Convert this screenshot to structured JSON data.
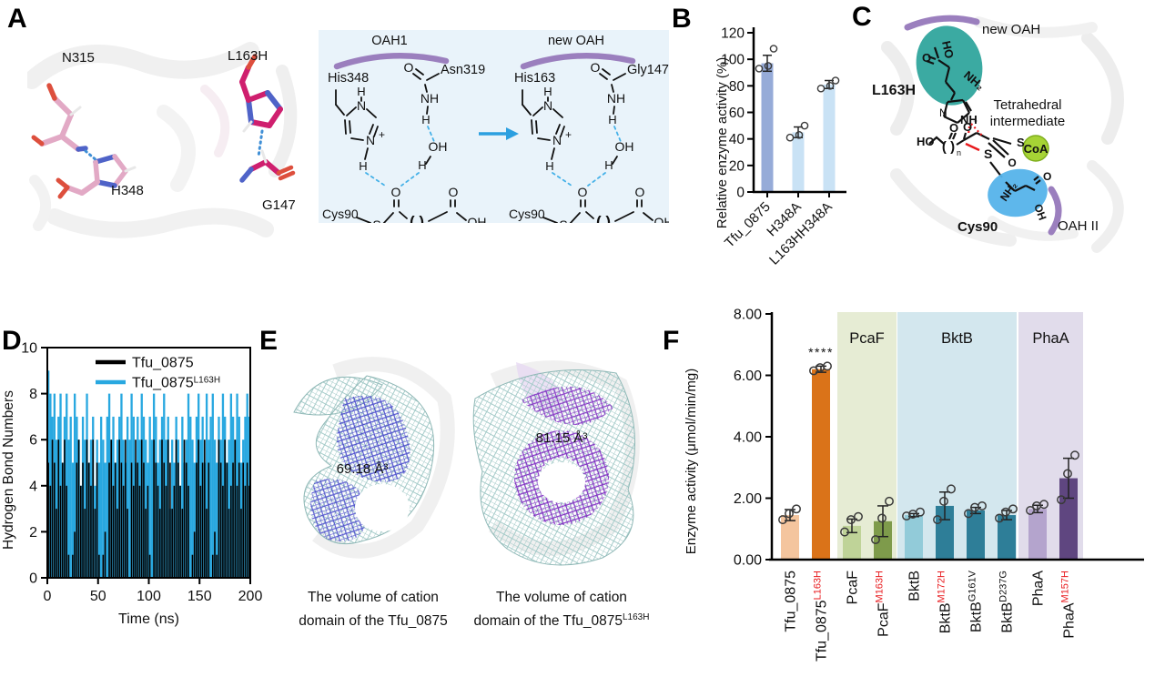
{
  "panel_labels": {
    "A": "A",
    "B": "B",
    "C": "C",
    "D": "D",
    "E": "E",
    "F": "F"
  },
  "panelA": {
    "mol_labels": {
      "n315": "N315",
      "h348": "H348",
      "l163h": "L163H",
      "g147": "G147"
    },
    "scheme": {
      "atoms": {
        "h": "H",
        "n": "N",
        "plus": "+",
        "nh": "NH",
        "o": "O",
        "oh": "OH",
        "s": "S",
        "cys": "Cys90",
        "bracket": "( )",
        "n_sub": "n"
      },
      "left": {
        "title": "OAH1",
        "res_left": "His348",
        "res_right": "Asn319",
        "highlight": false
      },
      "right": {
        "title": "new OAH",
        "res_left": "His163",
        "res_right": "Gly147",
        "highlight": true
      },
      "red": "#e8191c",
      "arc": "#9b7fbe",
      "hbond": "#45b1e8",
      "arrow": "#2b9fe0"
    }
  },
  "panelC": {
    "new_oah": "new OAH",
    "l163h": "L163H",
    "tetra1": "Tetrahedral",
    "tetra2": "intermediate",
    "coa": "CoA",
    "cys90": "Cys90",
    "oah2": "OAH II",
    "nh": "NH",
    "s_red": "S",
    "s": "S",
    "ho1": "HO",
    "ho2": "HO",
    "o1": "O",
    "o2": "O",
    "o3": "O",
    "o4": "O",
    "o5": "O",
    "minus": "⁻",
    "oh": "OH",
    "nh2_teal": "NH₂",
    "nh2_blue": "NH₂",
    "n_black": "N",
    "bracket": "( )",
    "n_sub": "n",
    "teal_color": "#178f8b",
    "blue_color": "#1d8fd1"
  },
  "panelE": {
    "left": {
      "volume": "69.18 Å³",
      "cap1": "The volume of cation",
      "cap2": "domain of the Tfu_0875",
      "cap2_sup": ""
    },
    "right": {
      "volume": "81.15 Å³",
      "cap1": "The volume of cation",
      "cap2": "domain of the Tfu_0875",
      "cap2_sup": "L163H"
    }
  },
  "chart_data": [
    {
      "id": "B",
      "type": "bar",
      "title": "",
      "xlabel": "",
      "ylabel": "Relative enzyme activity (%)",
      "ylim": [
        0,
        120
      ],
      "yticks": [
        0,
        20,
        40,
        60,
        80,
        100,
        120
      ],
      "grid": false,
      "legend_position": "none",
      "categories": [
        {
          "base": "Tfu_0875",
          "sup": "",
          "sup_red": false
        },
        {
          "base": "H348A",
          "sup": "",
          "sup_red": false
        },
        {
          "base": "L163HH348A",
          "sup": "",
          "sup_red": false
        }
      ],
      "values": [
        97,
        45,
        81
      ],
      "errors": [
        6,
        4,
        3
      ],
      "points": [
        [
          93,
          95,
          108
        ],
        [
          41,
          43,
          50
        ],
        [
          78,
          80,
          84
        ]
      ],
      "bar_colors": [
        "#96abd8",
        "#c9e2f5",
        "#c9e2f5"
      ]
    },
    {
      "id": "D",
      "type": "line",
      "xlabel": "Time (ns)",
      "ylabel": "Hydrogen Bond Numbers",
      "xlim": [
        0,
        200
      ],
      "ylim": [
        0,
        10
      ],
      "xticks": [
        0,
        50,
        100,
        150,
        200
      ],
      "yticks": [
        0,
        2,
        4,
        6,
        8,
        10
      ],
      "grid": false,
      "legend_position": "upper right",
      "legend": [
        {
          "label": "Tfu_0875",
          "sup": "",
          "color": "#000000"
        },
        {
          "label": "Tfu_0875",
          "sup": "L163H",
          "color": "#29a8e0"
        }
      ],
      "series": [
        {
          "name": "Tfu_0875",
          "color": "#000000",
          "values": [
            5,
            4,
            6,
            5,
            3,
            6,
            4,
            5,
            6,
            4,
            1,
            0,
            1,
            2,
            5,
            6,
            4,
            5,
            3,
            6,
            5,
            4,
            6,
            3,
            5,
            1,
            0,
            1,
            2,
            0,
            5,
            6,
            4,
            5,
            3,
            6,
            5,
            4,
            6,
            3,
            0,
            5,
            4,
            6,
            5,
            4,
            6,
            5,
            3,
            4,
            1,
            0,
            6,
            5,
            4,
            3,
            6,
            5,
            4,
            6,
            5,
            3,
            4,
            6,
            5,
            4,
            3,
            6,
            5,
            4,
            0,
            1,
            2,
            5,
            6,
            4,
            5,
            6,
            3,
            5,
            0,
            1,
            2,
            1,
            6,
            5,
            4,
            6,
            5,
            3,
            4,
            5,
            6,
            4,
            5,
            3,
            5,
            4,
            5,
            4
          ]
        },
        {
          "name": "Tfu_0875 L163H",
          "color": "#29a8e0",
          "values": [
            9,
            8,
            7,
            8,
            6,
            7,
            8,
            5,
            7,
            8,
            6,
            7,
            5,
            8,
            7,
            6,
            4,
            7,
            6,
            8,
            5,
            6,
            7,
            4,
            6,
            5,
            7,
            6,
            5,
            7,
            8,
            6,
            7,
            5,
            6,
            7,
            8,
            6,
            5,
            7,
            6,
            8,
            7,
            5,
            7,
            6,
            8,
            7,
            6,
            5,
            7,
            6,
            8,
            7,
            5,
            6,
            7,
            8,
            6,
            7,
            3,
            6,
            5,
            7,
            6,
            4,
            7,
            5,
            6,
            8,
            7,
            6,
            5,
            7,
            8,
            6,
            7,
            5,
            8,
            6,
            7,
            8,
            6,
            5,
            7,
            6,
            8,
            7,
            5,
            6,
            8,
            7,
            6,
            8,
            7,
            5,
            6,
            7,
            8,
            7
          ]
        }
      ]
    },
    {
      "id": "F",
      "type": "bar",
      "title": "",
      "xlabel": "",
      "ylabel": "Enzyme activity (μmol/min/mg)",
      "ylim": [
        0,
        8
      ],
      "yticks": [
        "0.00",
        "2.00",
        "4.00",
        "6.00",
        "8.00"
      ],
      "grid": false,
      "categories": [
        {
          "base": "Tfu_0875",
          "sup": "",
          "sup_red": false
        },
        {
          "base": "Tfu_0875",
          "sup": "L163H",
          "sup_red": true
        },
        {
          "base": "PcaF",
          "sup": "",
          "sup_red": false
        },
        {
          "base": "PcaF",
          "sup": "M163H",
          "sup_red": true
        },
        {
          "base": "BktB",
          "sup": "",
          "sup_red": false
        },
        {
          "base": "BktB",
          "sup": "M172H",
          "sup_red": true
        },
        {
          "base": "BktB",
          "sup": "G161V",
          "sup_red": false
        },
        {
          "base": "BktB",
          "sup": "D237G",
          "sup_red": false
        },
        {
          "base": "PhaA",
          "sup": "",
          "sup_red": false
        },
        {
          "base": "PhaA",
          "sup": "M157H",
          "sup_red": true
        }
      ],
      "values": [
        1.45,
        6.2,
        1.1,
        1.25,
        1.45,
        1.75,
        1.6,
        1.45,
        1.65,
        2.65
      ],
      "errors": [
        0.18,
        0.1,
        0.22,
        0.5,
        0.05,
        0.45,
        0.1,
        0.15,
        0.12,
        0.65
      ],
      "points": [
        [
          1.3,
          1.5,
          1.65
        ],
        [
          6.15,
          6.25,
          6.3
        ],
        [
          0.9,
          1.3,
          1.4
        ],
        [
          0.65,
          1.35,
          1.9
        ],
        [
          1.42,
          1.48,
          1.55
        ],
        [
          1.3,
          1.9,
          2.3
        ],
        [
          1.5,
          1.7,
          1.75
        ],
        [
          1.35,
          1.55,
          1.65
        ],
        [
          1.6,
          1.75,
          1.8
        ],
        [
          1.95,
          2.8,
          3.4
        ]
      ],
      "bar_colors": [
        "#f4c59e",
        "#da7319",
        "#bfd398",
        "#7e9b4b",
        "#92cbd9",
        "#2e7e98",
        "#2e7e98",
        "#2e7e98",
        "#b4a4cd",
        "#5f4680"
      ],
      "annotation": {
        "bar": 1,
        "text": "****"
      },
      "groups": [
        {
          "label": "PcaF",
          "bg": "#e6ecd4"
        },
        {
          "label": "BktB",
          "bg": "#d3e7ee"
        },
        {
          "label": "PhaA",
          "bg": "#e1dceb"
        }
      ]
    }
  ]
}
